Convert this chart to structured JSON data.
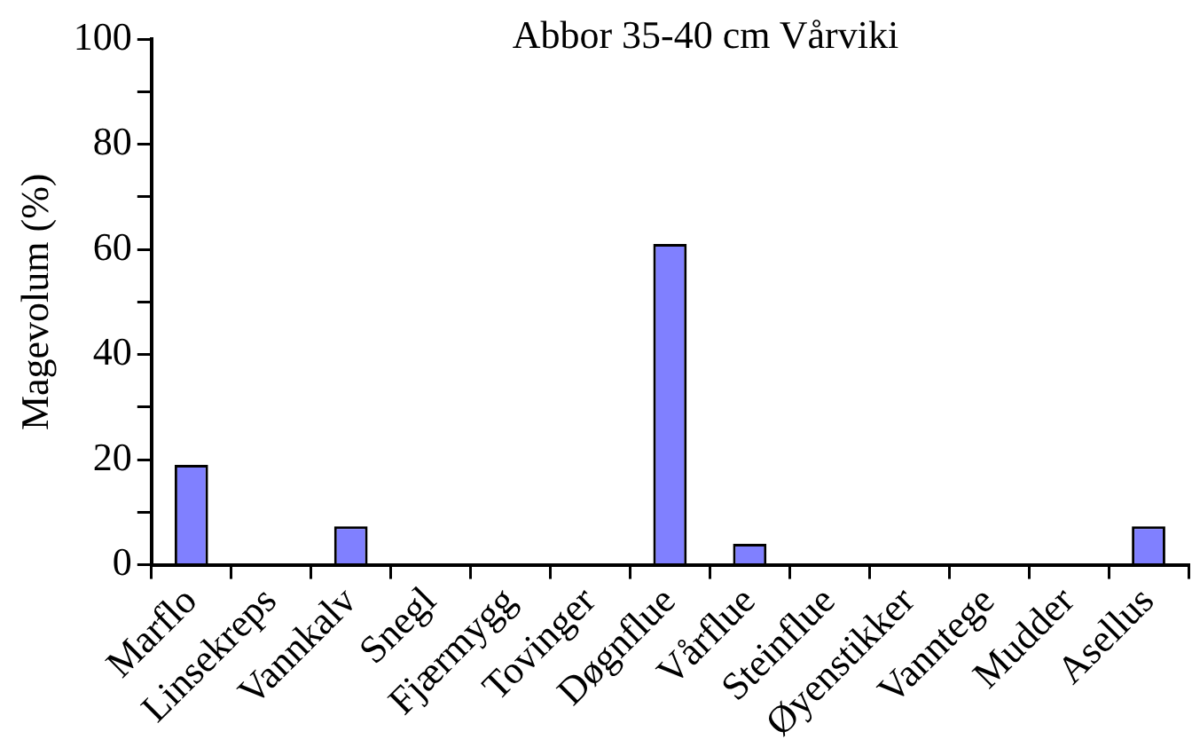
{
  "chart_data": {
    "type": "bar",
    "title": "Abbor 35-40 cm Vårviki",
    "ylabel": "Magevolum (%)",
    "categories": [
      "Marflo",
      "Linsekreps",
      "Vannkalv",
      "Snegl",
      "Fjærmygg",
      "Tovinger",
      "Døgnflue",
      "Vårflue",
      "Steinflue",
      "Øyenstikker",
      "Vanntege",
      "Mudder",
      "Asellus"
    ],
    "values": [
      19,
      0,
      7.3,
      0,
      0,
      0,
      61,
      4,
      0,
      0,
      0,
      0,
      7.3
    ],
    "color": "#8080ff",
    "ylim": [
      0,
      100
    ],
    "yticks": [
      0,
      {
        "value": 10,
        "label": null
      },
      20,
      {
        "value": 30,
        "label": null
      },
      40,
      {
        "value": 50,
        "label": null
      },
      60,
      {
        "value": 70,
        "label": null
      },
      80,
      {
        "value": 90,
        "label": null
      },
      100
    ],
    "grid": false,
    "legend": false
  }
}
